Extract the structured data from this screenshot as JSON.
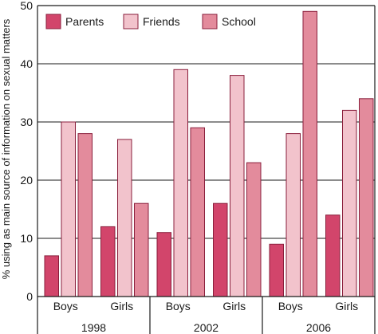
{
  "chart_data": {
    "type": "bar",
    "groups": [
      "1998",
      "2002",
      "2006"
    ],
    "categories": [
      "Boys",
      "Girls",
      "Boys",
      "Girls",
      "Boys",
      "Girls"
    ],
    "series": [
      {
        "name": "Parents",
        "color": "#d2456b",
        "values": [
          7,
          12,
          11,
          16,
          9,
          14
        ]
      },
      {
        "name": "Friends",
        "color": "#f2c3cc",
        "values": [
          30,
          27,
          39,
          38,
          28,
          32
        ]
      },
      {
        "name": "School",
        "color": "#e38b9c",
        "values": [
          28,
          16,
          29,
          23,
          49,
          34
        ]
      }
    ],
    "ylabel": "% using as main source of information on sexual matters",
    "ylim": [
      0,
      50
    ],
    "yticks": [
      0,
      10,
      20,
      30,
      40,
      50
    ],
    "grid": true,
    "legend_position": "top-left"
  }
}
